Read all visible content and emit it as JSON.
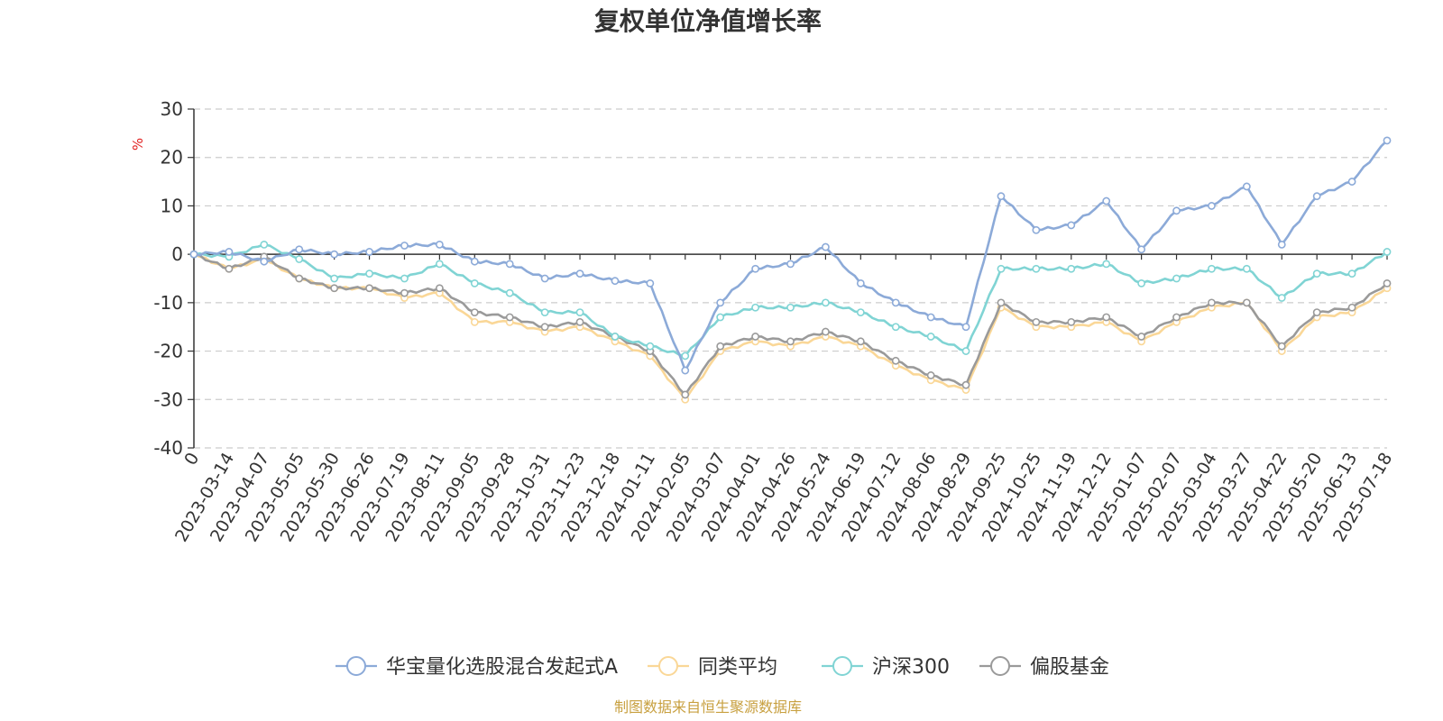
{
  "title": "复权单位净值增长率",
  "source": "制图数据来自恒生聚源数据库",
  "colors": {
    "source": "#c8a040",
    "unit": "#e02020",
    "grid": "#cccccc",
    "axis": "#333333"
  },
  "chart_data": {
    "type": "line",
    "ylabel": "%",
    "ylim": [
      -40,
      30
    ],
    "yticks": [
      30,
      20,
      10,
      0,
      -10,
      -20,
      -30,
      -40
    ],
    "grid": "horizontal-dashed",
    "legend": "bottom-center",
    "x_tick_labels": [
      "0",
      "2023-03-14",
      "2023-04-07",
      "2023-05-05",
      "2023-05-30",
      "2023-06-26",
      "2023-07-19",
      "2023-08-11",
      "2023-09-05",
      "2023-09-28",
      "2023-10-31",
      "2023-11-23",
      "2023-12-18",
      "2024-01-11",
      "2024-02-05",
      "2024-03-07",
      "2024-04-01",
      "2024-04-26",
      "2024-05-24",
      "2024-06-19",
      "2024-07-12",
      "2024-08-06",
      "2024-08-29",
      "2024-09-25",
      "2024-10-25",
      "2024-11-19",
      "2024-12-12",
      "2025-01-07",
      "2025-02-07",
      "2025-03-04",
      "2025-03-27",
      "2025-04-22",
      "2025-05-20",
      "2025-06-13",
      "2025-07-18"
    ],
    "series": [
      {
        "name": "华宝量化选股混合发起式A",
        "color": "#8caad8",
        "values": [
          0,
          0.5,
          -1.5,
          1,
          0,
          0.5,
          1.8,
          2,
          -1.5,
          -2,
          -5,
          -4,
          -5.5,
          -6,
          -24,
          -10,
          -3,
          -2,
          1.5,
          -6,
          -10,
          -13,
          -15,
          12,
          5,
          6,
          11,
          1,
          9,
          10,
          14,
          2,
          12,
          15,
          23.5
        ]
      },
      {
        "name": "同类平均",
        "color": "#fad797",
        "values": [
          0,
          -3,
          -1,
          -5,
          -7,
          -7,
          -9,
          -8,
          -14,
          -14,
          -16,
          -15,
          -18,
          -21,
          -30,
          -20,
          -18,
          -19,
          -17,
          -19,
          -23,
          -26,
          -28,
          -11,
          -15,
          -15,
          -14,
          -18,
          -14,
          -11,
          -10,
          -20,
          -13,
          -12,
          -7
        ]
      },
      {
        "name": "沪深300",
        "color": "#80d4d4",
        "values": [
          0,
          -0.5,
          2,
          -1,
          -5,
          -4,
          -5,
          -2,
          -6,
          -8,
          -12,
          -12,
          -17,
          -19,
          -21,
          -13,
          -11,
          -11,
          -10,
          -12,
          -15,
          -17,
          -20,
          -3,
          -3,
          -3,
          -2,
          -6,
          -5,
          -3,
          -3,
          -9,
          -4,
          -4,
          0.5
        ]
      },
      {
        "name": "偏股基金",
        "color": "#9a9a9a",
        "values": [
          0,
          -3,
          -0.5,
          -5,
          -7,
          -7,
          -8,
          -7,
          -12,
          -13,
          -15,
          -14,
          -17,
          -20,
          -29,
          -19,
          -17,
          -18,
          -16,
          -18,
          -22,
          -25,
          -27,
          -10,
          -14,
          -14,
          -13,
          -17,
          -13,
          -10,
          -10,
          -19,
          -12,
          -11,
          -6
        ]
      }
    ]
  }
}
